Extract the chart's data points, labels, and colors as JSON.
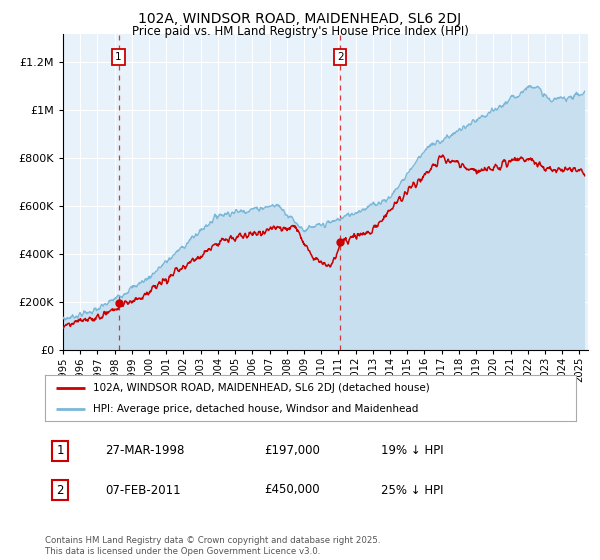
{
  "title": "102A, WINDSOR ROAD, MAIDENHEAD, SL6 2DJ",
  "subtitle": "Price paid vs. HM Land Registry's House Price Index (HPI)",
  "ytick_values": [
    0,
    200000,
    400000,
    600000,
    800000,
    1000000,
    1200000
  ],
  "ylim": [
    0,
    1320000
  ],
  "xlim_start": 1995.0,
  "xlim_end": 2025.5,
  "hpi_color": "#7bb8d8",
  "hpi_fill_color": "#c8dff0",
  "price_color": "#cc0000",
  "plot_bg": "#e8f2fa",
  "grid_color": "#ffffff",
  "legend_label_red": "102A, WINDSOR ROAD, MAIDENHEAD, SL6 2DJ (detached house)",
  "legend_label_blue": "HPI: Average price, detached house, Windsor and Maidenhead",
  "point1_label": "1",
  "point1_date": "27-MAR-1998",
  "point1_price": "£197,000",
  "point1_hpi": "19% ↓ HPI",
  "point1_x": 1998.23,
  "point1_y": 197000,
  "point2_label": "2",
  "point2_date": "07-FEB-2011",
  "point2_price": "£450,000",
  "point2_hpi": "25% ↓ HPI",
  "point2_x": 2011.1,
  "point2_y": 450000,
  "footer": "Contains HM Land Registry data © Crown copyright and database right 2025.\nThis data is licensed under the Open Government Licence v3.0.",
  "xtick_years": [
    1995,
    1996,
    1997,
    1998,
    1999,
    2000,
    2001,
    2002,
    2003,
    2004,
    2005,
    2006,
    2007,
    2008,
    2009,
    2010,
    2011,
    2012,
    2013,
    2014,
    2015,
    2016,
    2017,
    2018,
    2019,
    2020,
    2021,
    2022,
    2023,
    2024,
    2025
  ]
}
